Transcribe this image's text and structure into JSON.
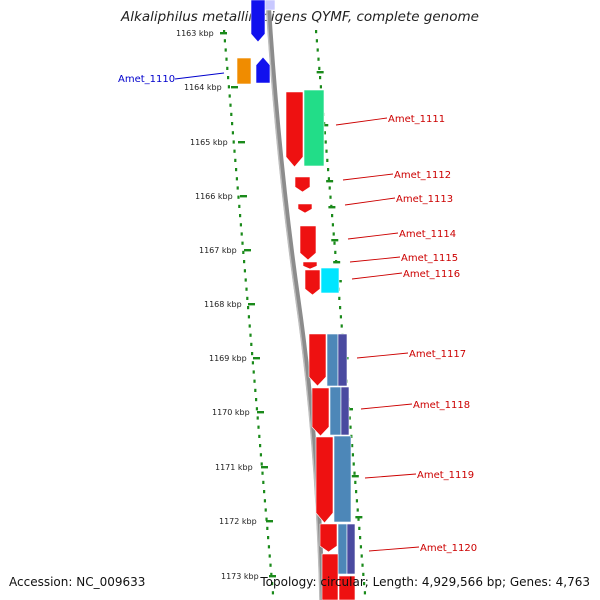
{
  "title": "Alkaliphilus metalliredigens QYMF, complete genome",
  "footer": {
    "accession": "Accession: NC_009633",
    "summary": "Topology: circular; Length: 4,929,566 bp; Genes: 4,763"
  },
  "colors": {
    "ruler_dots": "#1a8a1a",
    "backbone": "#8c8c8c",
    "label_red": "#cc0000",
    "label_blue": "#0000cc",
    "gene_red": "#ee1111",
    "gene_green": "#22dd88",
    "gene_cyan": "#00e5ff",
    "gene_steel": "#4d87b8",
    "gene_navy": "#4a4aa0",
    "gene_orange": "#f08c00",
    "gene_blue": "#1111ee"
  },
  "kbp_ticks": [
    "1163 kbp",
    "1164 kbp",
    "1165 kbp",
    "1166 kbp",
    "1167 kbp",
    "1168 kbp",
    "1169 kbp",
    "1170 kbp",
    "1171 kbp",
    "1172 kbp",
    "1173 kbp"
  ],
  "gene_labels": [
    {
      "name": "Amet_1110",
      "color": "blue"
    },
    {
      "name": "Amet_1111",
      "color": "red"
    },
    {
      "name": "Amet_1112",
      "color": "red"
    },
    {
      "name": "Amet_1113",
      "color": "red"
    },
    {
      "name": "Amet_1114",
      "color": "red"
    },
    {
      "name": "Amet_1115",
      "color": "red"
    },
    {
      "name": "Amet_1116",
      "color": "red"
    },
    {
      "name": "Amet_1117",
      "color": "red"
    },
    {
      "name": "Amet_1118",
      "color": "red"
    },
    {
      "name": "Amet_1119",
      "color": "red"
    },
    {
      "name": "Amet_1120",
      "color": "red"
    }
  ]
}
